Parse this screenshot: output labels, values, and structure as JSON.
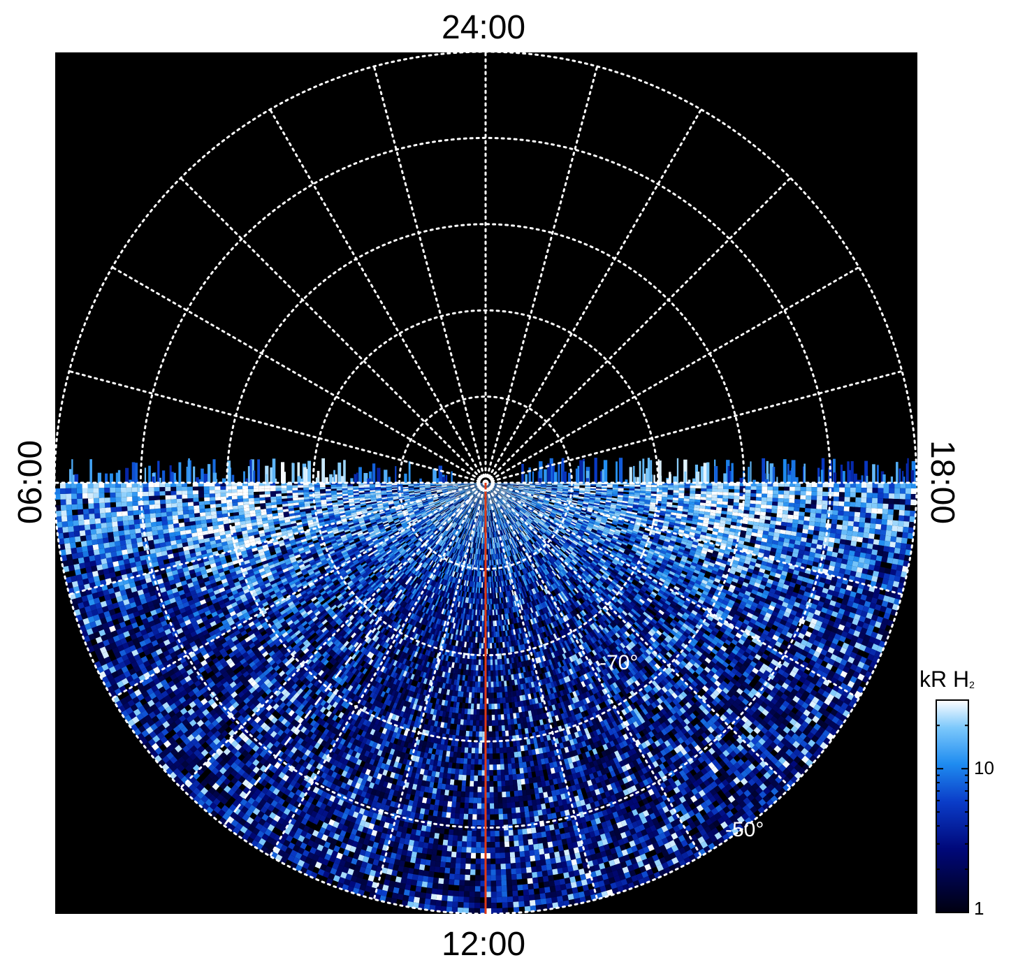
{
  "chart_data": {
    "type": "heatmap",
    "projection": "polar",
    "local_time_labels": [
      "24:00",
      "12:00",
      "06:00",
      "18:00"
    ],
    "latitude_labels": [
      "-70°",
      "-50°"
    ],
    "latitude_grid": [
      -90,
      -80,
      -70,
      -60,
      -50,
      -40
    ],
    "local_time_grid_step_hours": 1,
    "colorbar": {
      "title": "kR H",
      "title_subscript": "2",
      "tick_labels": [
        "10",
        "1"
      ],
      "scale": "log",
      "range": [
        1,
        30
      ],
      "colors": [
        "#000010",
        "#00087a",
        "#0a3cc8",
        "#1f8cf0",
        "#7cc8fb",
        "#ffffff"
      ]
    },
    "coverage": "dayside hemisphere (06:00 through 12:00 to 18:00)",
    "features": {
      "noon_meridian_line": {
        "local_time": "12:00",
        "color": "#e03a14"
      },
      "dashed_line_color": "#ffffff",
      "grid": "dotted white"
    },
    "background_color": "#000000"
  },
  "labels": {
    "top": "24:00",
    "bottom": "12:00",
    "left": "06:00",
    "right": "18:00",
    "lat70": "-70°",
    "lat50": "-50°"
  }
}
